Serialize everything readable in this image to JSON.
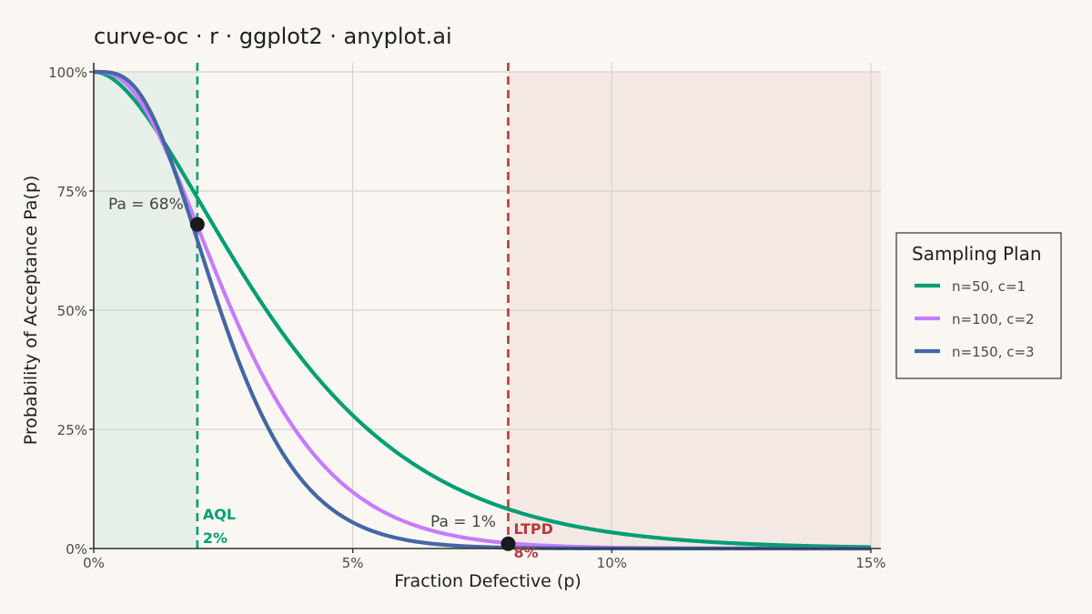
{
  "chart_data": {
    "type": "line",
    "title": "curve-oc · r · ggplot2 · anyplot.ai",
    "xlabel": "Fraction Defective (p)",
    "ylabel": "Probability of Acceptance  Pa(p)",
    "xlim": [
      0,
      0.15
    ],
    "ylim": [
      0,
      1
    ],
    "x_ticks": [
      0,
      0.05,
      0.1,
      0.15
    ],
    "x_tick_labels": [
      "0%",
      "5%",
      "10%",
      "15%"
    ],
    "y_ticks": [
      0,
      0.25,
      0.5,
      0.75,
      1.0
    ],
    "y_tick_labels": [
      "0%",
      "25%",
      "50%",
      "75%",
      "100%"
    ],
    "grid": true,
    "legend": {
      "title": "Sampling Plan",
      "placement": "right"
    },
    "series": [
      {
        "name": "n=50, c=1",
        "n": 50,
        "c": 1,
        "color": "#009E73"
      },
      {
        "name": "n=100, c=2",
        "n": 100,
        "c": 2,
        "color": "#C77CFF"
      },
      {
        "name": "n=150, c=3",
        "n": 150,
        "c": 3,
        "color": "#4467A3"
      }
    ],
    "regions": [
      {
        "from": 0,
        "to": 0.02,
        "color": "#E7F0E8"
      },
      {
        "from": 0.08,
        "to": 0.15,
        "color": "#F4E8E4"
      }
    ],
    "reference_lines": [
      {
        "x": 0.02,
        "color": "#009E73",
        "label": "AQL",
        "value_label": "2%"
      },
      {
        "x": 0.08,
        "color": "#B5393D",
        "label": "LTPD",
        "value_label": "8%"
      }
    ],
    "points": [
      {
        "x": 0.02,
        "y": 0.68,
        "label": "Pa = 68%"
      },
      {
        "x": 0.08,
        "y": 0.01,
        "label": "Pa = 1%"
      }
    ]
  }
}
